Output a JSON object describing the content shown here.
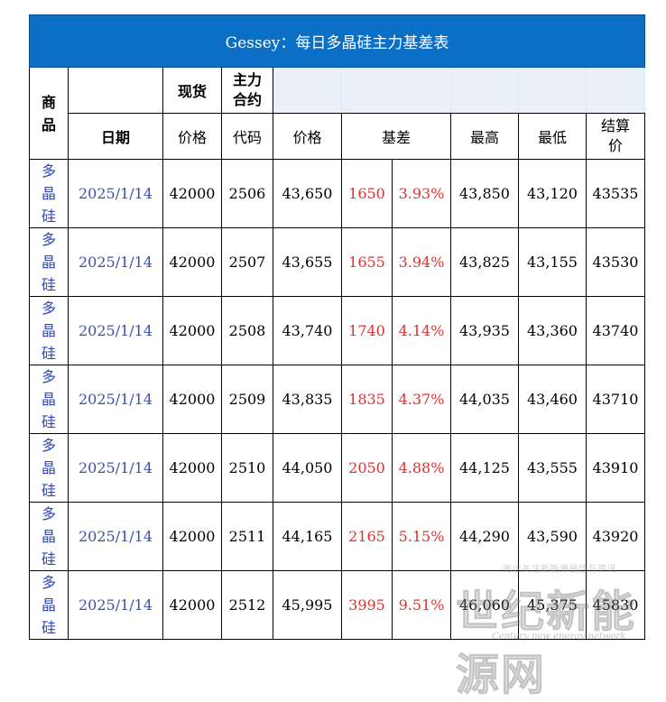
{
  "title": "Gessey：每日多晶硅主力基差表",
  "header": {
    "product": "商\n品",
    "spot": "现货",
    "main_contract": "主力\n合约",
    "date": "日期",
    "price": "价格",
    "code": "代码",
    "futures_price": "价格",
    "basis": "基差",
    "high": "最高",
    "low": "最低",
    "settle": "结算\n价"
  },
  "rows": [
    {
      "product": "多\n晶\n硅",
      "date": "2025/1/14",
      "spot": "42000",
      "code": "2506",
      "price": "43,650",
      "basis": "1650",
      "basis_pct": "3.93%",
      "high": "43,850",
      "low": "43,120",
      "settle": "43535"
    },
    {
      "product": "多\n晶\n硅",
      "date": "2025/1/14",
      "spot": "42000",
      "code": "2507",
      "price": "43,655",
      "basis": "1655",
      "basis_pct": "3.94%",
      "high": "43,825",
      "low": "43,155",
      "settle": "43530"
    },
    {
      "product": "多\n晶\n硅",
      "date": "2025/1/14",
      "spot": "42000",
      "code": "2508",
      "price": "43,740",
      "basis": "1740",
      "basis_pct": "4.14%",
      "high": "43,935",
      "low": "43,360",
      "settle": "43740"
    },
    {
      "product": "多\n晶\n硅",
      "date": "2025/1/14",
      "spot": "42000",
      "code": "2509",
      "price": "43,835",
      "basis": "1835",
      "basis_pct": "4.37%",
      "high": "44,035",
      "low": "43,460",
      "settle": "43710"
    },
    {
      "product": "多\n晶\n硅",
      "date": "2025/1/14",
      "spot": "42000",
      "code": "2510",
      "price": "44,050",
      "basis": "2050",
      "basis_pct": "4.88%",
      "high": "44,125",
      "low": "43,555",
      "settle": "43910"
    },
    {
      "product": "多\n晶\n硅",
      "date": "2025/1/14",
      "spot": "42000",
      "code": "2511",
      "price": "44,165",
      "basis": "2165",
      "basis_pct": "5.15%",
      "high": "44,290",
      "low": "43,590",
      "settle": "43920"
    },
    {
      "product": "多\n晶\n硅",
      "date": "2025/1/14",
      "spot": "42000",
      "code": "2512",
      "price": "45,995",
      "basis": "3995",
      "basis_pct": "9.51%",
      "high": "46,060",
      "low": "45,375",
      "settle": "45830"
    }
  ],
  "watermark": {
    "tagline": "阅读关注新能源最佳与资讯",
    "brand": "世纪新能源网",
    "english": "Century new energy network"
  },
  "colors": {
    "title_bg": "#0b6fc6",
    "basis_text": "#e03030",
    "product_text": "#2e47b8"
  }
}
